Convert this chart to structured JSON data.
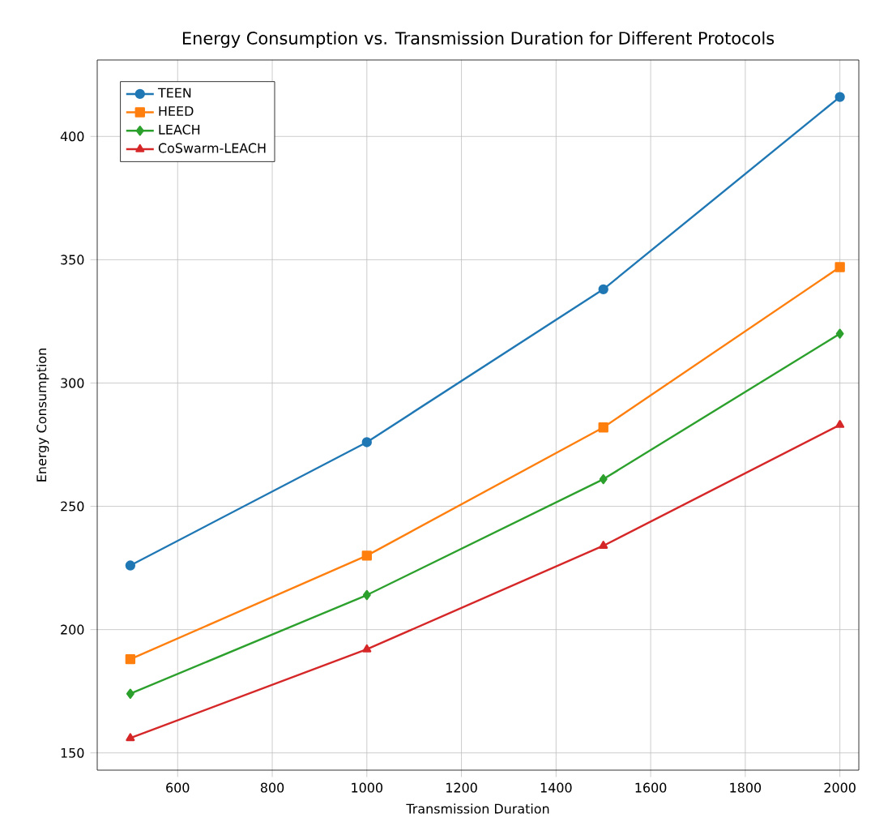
{
  "chart_data": {
    "type": "line",
    "title": "Energy Consumption vs. Transmission Duration for Different Protocols",
    "xlabel": "Transmission Duration",
    "ylabel": "Energy Consumption",
    "x": [
      500,
      1000,
      1500,
      2000
    ],
    "series": [
      {
        "name": "TEEN",
        "color": "#1f77b4",
        "marker": "circle",
        "values": [
          226,
          276,
          338,
          416
        ]
      },
      {
        "name": "HEED",
        "color": "#ff7f0e",
        "marker": "square",
        "values": [
          188,
          230,
          282,
          347
        ]
      },
      {
        "name": "LEACH",
        "color": "#2ca02c",
        "marker": "diamond",
        "values": [
          174,
          214,
          261,
          320
        ]
      },
      {
        "name": "CoSwarm-LEACH",
        "color": "#d62728",
        "marker": "triangle",
        "values": [
          156,
          192,
          234,
          283
        ]
      }
    ],
    "xlim": [
      430,
      2040
    ],
    "ylim": [
      143,
      431
    ],
    "xticks": [
      600,
      800,
      1000,
      1200,
      1400,
      1600,
      1800,
      2000
    ],
    "yticks": [
      150,
      200,
      250,
      300,
      350,
      400
    ],
    "grid": true,
    "legend": "top left",
    "line_style": "solid"
  }
}
